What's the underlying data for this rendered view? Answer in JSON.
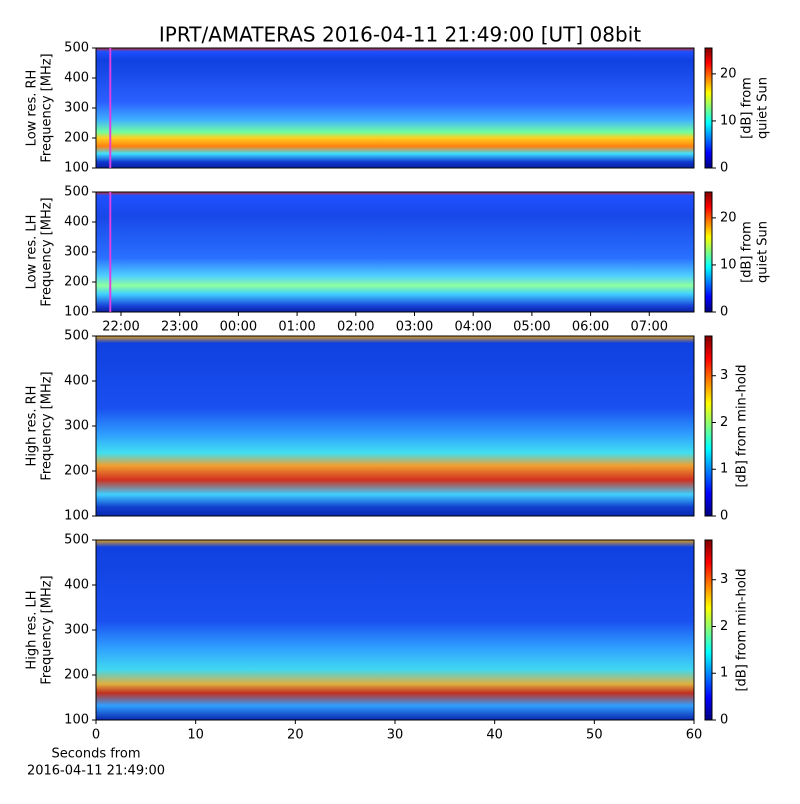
{
  "figure": {
    "title": "IPRT/AMATERAS 2016-04-11 21:49:00 [UT]   08bit"
  },
  "chart_data": [
    {
      "type": "heatmap",
      "ylabel": [
        "Low res. RH",
        "Frequency [MHz]"
      ],
      "ylim": [
        100,
        500
      ],
      "yticks": [
        100,
        200,
        300,
        400,
        500
      ],
      "xlim": [
        21.574,
        31.762
      ],
      "cursor": 21.817,
      "cursor_color": "#e040e0",
      "colorbar": {
        "label": [
          "[dB] from",
          "quiet Sun"
        ],
        "lim": [
          0,
          25.5
        ],
        "ticks": [
          0,
          10,
          20
        ]
      }
    },
    {
      "type": "heatmap",
      "ylabel": [
        "Low res. LH",
        "Frequency [MHz]"
      ],
      "ylim": [
        100,
        500
      ],
      "yticks": [
        100,
        200,
        300,
        400,
        500
      ],
      "xlim": [
        21.574,
        31.762
      ],
      "cursor": 21.817,
      "cursor_color": "#e040e0",
      "xticks": [
        {
          "value": 22,
          "label": "22:00"
        },
        {
          "value": 23,
          "label": "23:00"
        },
        {
          "value": 24,
          "label": "00:00"
        },
        {
          "value": 25,
          "label": "01:00"
        },
        {
          "value": 26,
          "label": "02:00"
        },
        {
          "value": 27,
          "label": "03:00"
        },
        {
          "value": 28,
          "label": "04:00"
        },
        {
          "value": 29,
          "label": "05:00"
        },
        {
          "value": 30,
          "label": "06:00"
        },
        {
          "value": 31,
          "label": "07:00"
        }
      ],
      "colorbar": {
        "label": [
          "[dB] from",
          "quiet Sun"
        ],
        "lim": [
          0,
          25.5
        ],
        "ticks": [
          0,
          10,
          20
        ]
      }
    },
    {
      "type": "heatmap",
      "ylabel": [
        "High res. RH",
        "Frequency [MHz]"
      ],
      "ylim": [
        100,
        500
      ],
      "yticks": [
        100,
        200,
        300,
        400,
        500
      ],
      "xlim": [
        0,
        60
      ],
      "colorbar": {
        "label": [
          "[dB] from min-hold"
        ],
        "lim": [
          0,
          3.85
        ],
        "ticks": [
          0,
          1,
          2,
          3
        ]
      }
    },
    {
      "type": "heatmap",
      "ylabel": [
        "High res. LH",
        "Frequency [MHz]"
      ],
      "ylim": [
        100,
        500
      ],
      "yticks": [
        100,
        200,
        300,
        400,
        500
      ],
      "xlim": [
        0,
        60
      ],
      "xticks": [
        0,
        10,
        20,
        30,
        40,
        50,
        60
      ],
      "xlabel": [
        "Seconds from",
        "2016-04-11 21:49:00"
      ],
      "colorbar": {
        "label": [
          "[dB] from min-hold"
        ],
        "lim": [
          0,
          3.85
        ],
        "ticks": [
          0,
          1,
          2,
          3
        ]
      }
    }
  ]
}
